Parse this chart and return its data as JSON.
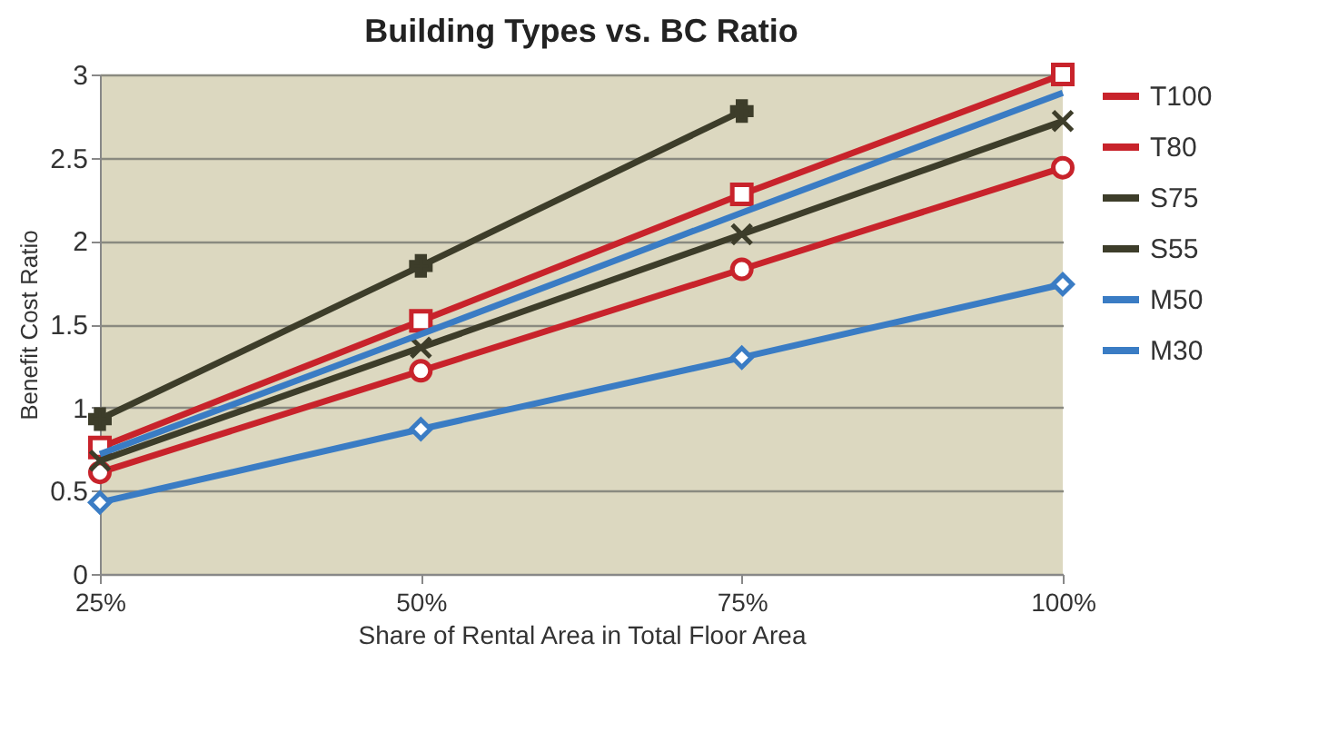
{
  "chart_data": {
    "type": "line",
    "title": "Building Types vs. BC Ratio",
    "xlabel": "Share of Rental Area in Total Floor Area",
    "ylabel": "Benefit Cost Ratio",
    "categories": [
      "25%",
      "50%",
      "75%",
      "100%"
    ],
    "series": [
      {
        "name": "T100",
        "color": "#c8232b",
        "marker": "square",
        "values": [
          0.76,
          1.52,
          2.28,
          3.0
        ]
      },
      {
        "name": "T80",
        "color": "#c8232b",
        "marker": "circle",
        "values": [
          0.61,
          1.22,
          1.83,
          2.44
        ]
      },
      {
        "name": "S75",
        "color": "#3d3d2a",
        "marker": "cross",
        "values": [
          0.93,
          1.85,
          2.78,
          null
        ]
      },
      {
        "name": "S55",
        "color": "#3d3d2a",
        "marker": "x",
        "values": [
          0.68,
          1.36,
          2.04,
          2.72
        ]
      },
      {
        "name": "M50",
        "color": "#3a7cc4",
        "marker": "none",
        "values": [
          0.72,
          1.44,
          2.17,
          2.89
        ]
      },
      {
        "name": "M30",
        "color": "#3a7cc4",
        "marker": "diamond",
        "values": [
          0.43,
          0.87,
          1.3,
          1.74
        ]
      }
    ],
    "ylim": [
      0,
      3
    ],
    "yticks": [
      0,
      0.5,
      1,
      1.5,
      2,
      2.5,
      3
    ],
    "grid": "y",
    "legend": "right"
  }
}
